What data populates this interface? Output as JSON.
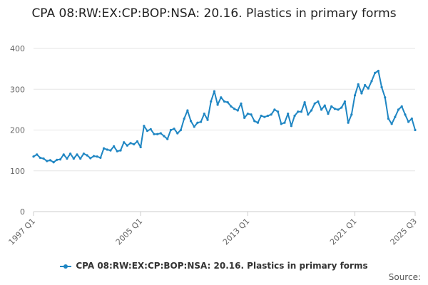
{
  "chart_data": {
    "type": "line",
    "title": "CPA 08:RW:EX:CP:BOP:NSA: 20.16. Plastics in primary forms",
    "xlabel": "",
    "ylabel": "",
    "ylim": [
      0,
      400
    ],
    "yticks": [
      0,
      100,
      200,
      300,
      400
    ],
    "xtick_labels": [
      "1997 Q1",
      "2005 Q1",
      "2013 Q1",
      "2021 Q1",
      "2025 Q3"
    ],
    "grid": true,
    "legend_position": "bottom",
    "series": [
      {
        "name": "CPA 08:RW:EX:CP:BOP:NSA: 20.16. Plastics in primary forms",
        "color": "#1f86c3",
        "points": [
          [
            "1997-01",
            135
          ],
          [
            "1997-04",
            140
          ],
          [
            "1997-07",
            132
          ],
          [
            "1997-10",
            130
          ],
          [
            "1998-01",
            124
          ],
          [
            "1998-04",
            126
          ],
          [
            "1998-07",
            121
          ],
          [
            "1998-10",
            127
          ],
          [
            "1999-01",
            128
          ],
          [
            "1999-04",
            140
          ],
          [
            "1999-07",
            130
          ],
          [
            "1999-10",
            142
          ],
          [
            "2000-01",
            130
          ],
          [
            "2000-04",
            140
          ],
          [
            "2000-07",
            130
          ],
          [
            "2000-10",
            142
          ],
          [
            "2001-01",
            138
          ],
          [
            "2001-04",
            131
          ],
          [
            "2001-07",
            136
          ],
          [
            "2001-10",
            135
          ],
          [
            "2002-01",
            132
          ],
          [
            "2002-04",
            155
          ],
          [
            "2002-07",
            152
          ],
          [
            "2002-10",
            150
          ],
          [
            "2003-01",
            160
          ],
          [
            "2003-04",
            148
          ],
          [
            "2003-07",
            150
          ],
          [
            "2003-10",
            170
          ],
          [
            "2004-01",
            162
          ],
          [
            "2004-04",
            168
          ],
          [
            "2004-07",
            165
          ],
          [
            "2004-10",
            172
          ],
          [
            "2005-01",
            158
          ],
          [
            "2005-04",
            210
          ],
          [
            "2005-07",
            198
          ],
          [
            "2005-10",
            202
          ],
          [
            "2006-01",
            190
          ],
          [
            "2006-04",
            190
          ],
          [
            "2006-07",
            192
          ],
          [
            "2006-10",
            185
          ],
          [
            "2007-01",
            178
          ],
          [
            "2007-04",
            200
          ],
          [
            "2007-07",
            203
          ],
          [
            "2007-10",
            192
          ],
          [
            "2008-01",
            200
          ],
          [
            "2008-04",
            228
          ],
          [
            "2008-07",
            248
          ],
          [
            "2008-10",
            222
          ],
          [
            "2009-01",
            208
          ],
          [
            "2009-04",
            218
          ],
          [
            "2009-07",
            220
          ],
          [
            "2009-10",
            240
          ],
          [
            "2010-01",
            225
          ],
          [
            "2010-04",
            270
          ],
          [
            "2010-07",
            295
          ],
          [
            "2010-10",
            262
          ],
          [
            "2011-01",
            280
          ],
          [
            "2011-04",
            270
          ],
          [
            "2011-07",
            268
          ],
          [
            "2011-10",
            258
          ],
          [
            "2012-01",
            252
          ],
          [
            "2012-04",
            248
          ],
          [
            "2012-07",
            265
          ],
          [
            "2012-10",
            230
          ],
          [
            "2013-01",
            240
          ],
          [
            "2013-04",
            238
          ],
          [
            "2013-07",
            222
          ],
          [
            "2013-10",
            218
          ],
          [
            "2014-01",
            235
          ],
          [
            "2014-04",
            232
          ],
          [
            "2014-07",
            235
          ],
          [
            "2014-10",
            238
          ],
          [
            "2015-01",
            250
          ],
          [
            "2015-04",
            245
          ],
          [
            "2015-07",
            215
          ],
          [
            "2015-10",
            218
          ],
          [
            "2016-01",
            240
          ],
          [
            "2016-04",
            210
          ],
          [
            "2016-07",
            235
          ],
          [
            "2016-10",
            245
          ],
          [
            "2017-01",
            245
          ],
          [
            "2017-04",
            268
          ],
          [
            "2017-07",
            238
          ],
          [
            "2017-10",
            248
          ],
          [
            "2018-01",
            265
          ],
          [
            "2018-04",
            270
          ],
          [
            "2018-07",
            250
          ],
          [
            "2018-10",
            260
          ],
          [
            "2019-01",
            240
          ],
          [
            "2019-04",
            258
          ],
          [
            "2019-07",
            252
          ],
          [
            "2019-10",
            250
          ],
          [
            "2020-01",
            255
          ],
          [
            "2020-04",
            270
          ],
          [
            "2020-07",
            218
          ],
          [
            "2020-10",
            238
          ],
          [
            "2021-01",
            285
          ],
          [
            "2021-04",
            312
          ],
          [
            "2021-07",
            290
          ],
          [
            "2021-10",
            310
          ],
          [
            "2022-01",
            302
          ],
          [
            "2022-04",
            320
          ],
          [
            "2022-07",
            340
          ],
          [
            "2022-10",
            345
          ],
          [
            "2023-01",
            305
          ],
          [
            "2023-04",
            280
          ],
          [
            "2023-07",
            228
          ],
          [
            "2023-10",
            215
          ],
          [
            "2024-01",
            232
          ],
          [
            "2024-04",
            250
          ],
          [
            "2024-07",
            258
          ],
          [
            "2024-10",
            238
          ],
          [
            "2025-01",
            220
          ],
          [
            "2025-04",
            228
          ],
          [
            "2025-07",
            200
          ]
        ]
      }
    ]
  },
  "footer": {
    "source": "Source:"
  }
}
